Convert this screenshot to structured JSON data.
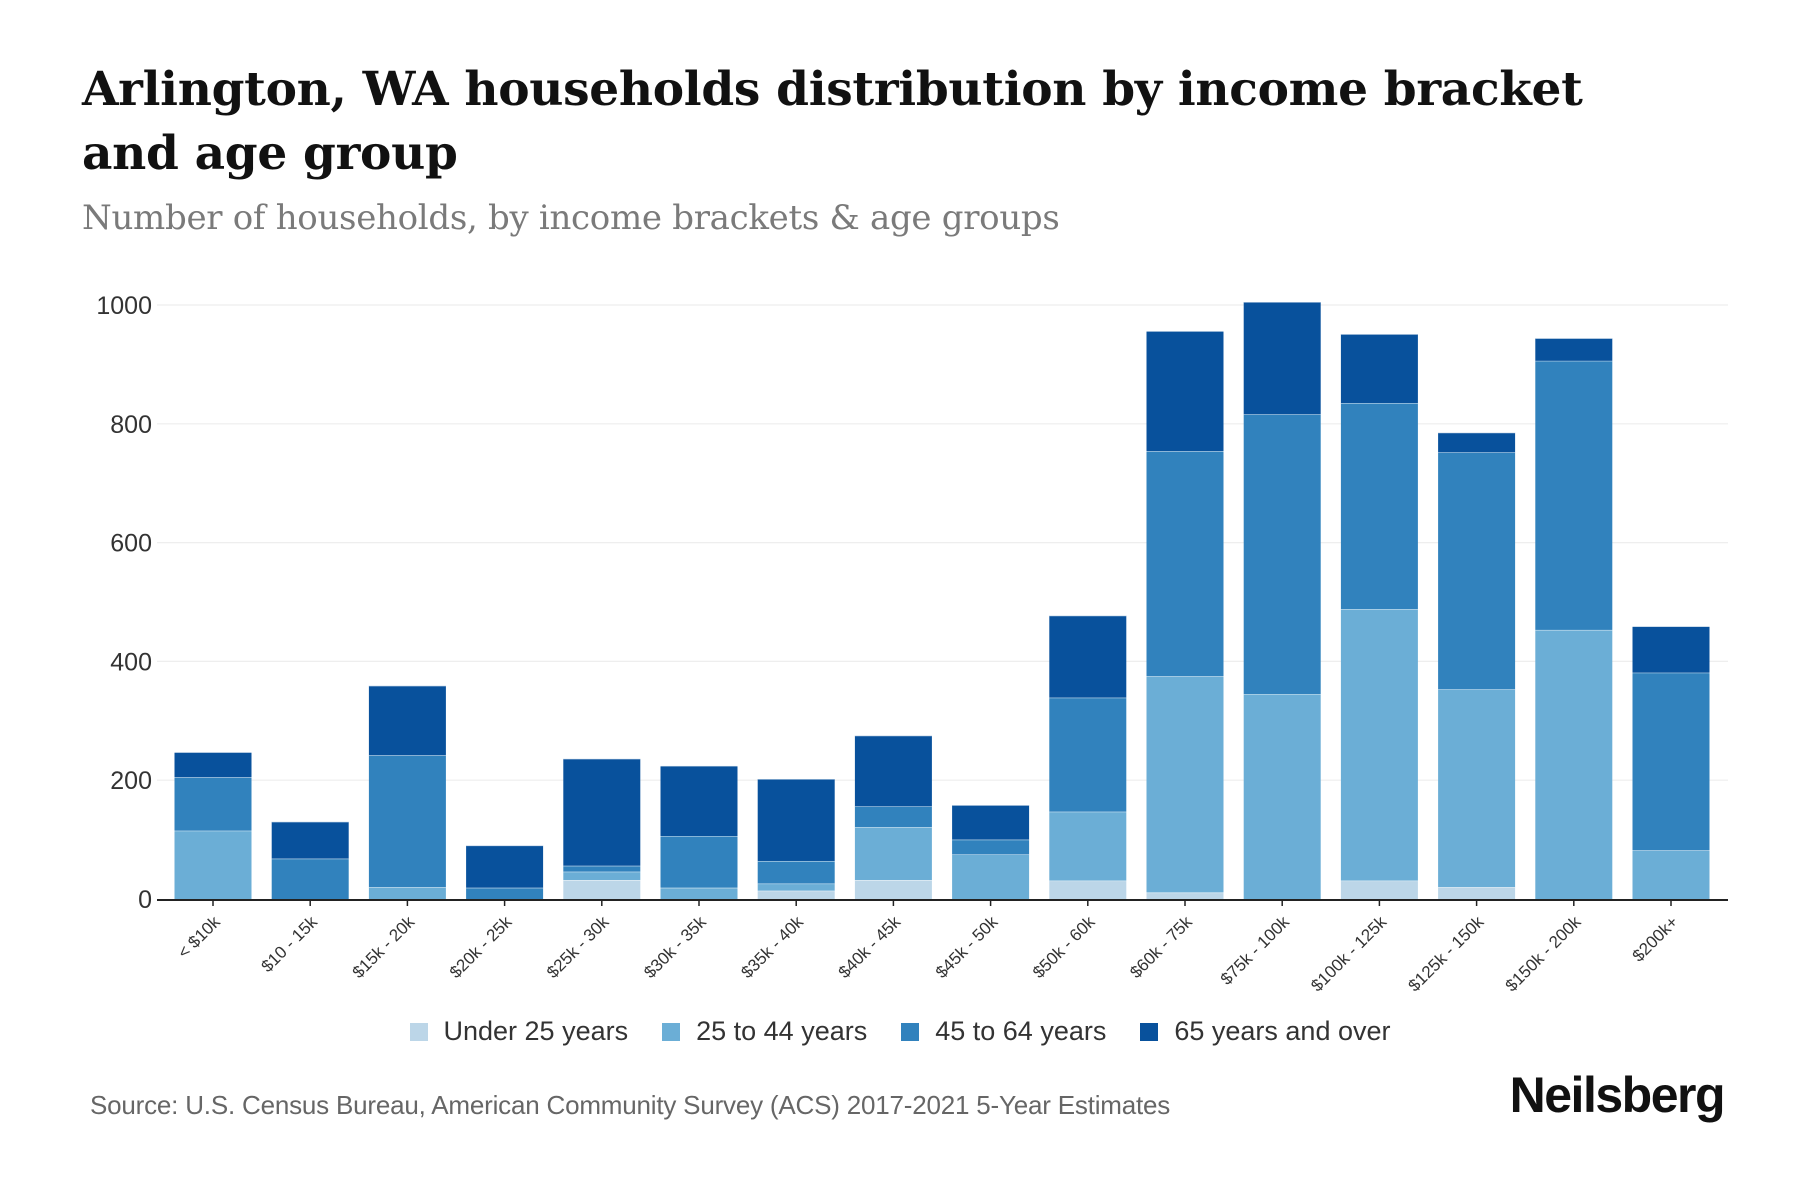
{
  "header": {
    "title": "Arlington, WA households distribution by income bracket and age group",
    "subtitle": "Number of households, by income brackets & age groups"
  },
  "footer": {
    "source": "Source: U.S. Census Bureau, American Community Survey (ACS) 2017-2021 5-Year Estimates",
    "brand": "Neilsberg"
  },
  "legend": [
    {
      "label": "Under 25 years",
      "color": "#bcd6e8"
    },
    {
      "label": "25 to 44 years",
      "color": "#6baed6"
    },
    {
      "label": "45 to 64 years",
      "color": "#3182bd"
    },
    {
      "label": "65 years and over",
      "color": "#08519c"
    }
  ],
  "chart_data": {
    "type": "bar",
    "stacked": true,
    "title": "Arlington, WA households distribution by income bracket and age group",
    "subtitle": "Number of households, by income brackets & age groups",
    "xlabel": "",
    "ylabel": "",
    "ylim": [
      0,
      1000
    ],
    "yticks": [
      0,
      200,
      400,
      600,
      800,
      1000
    ],
    "grid": true,
    "legend_position": "bottom",
    "categories": [
      "< $10k",
      "$10 - 15k",
      "$15k - 20k",
      "$20k - 25k",
      "$25k - 30k",
      "$30k - 35k",
      "$35k - 40k",
      "$40k - 45k",
      "$45k - 50k",
      "$50k - 60k",
      "$60k - 75k",
      "$75k - 100k",
      "$100k - 125k",
      "$125k - 150k",
      "$150k - 200k",
      "$200k+"
    ],
    "series": [
      {
        "name": "Under 25 years",
        "color": "#bcd6e8",
        "values": [
          0,
          0,
          0,
          0,
          32,
          0,
          14,
          32,
          0,
          31,
          11,
          0,
          31,
          20,
          0,
          0
        ]
      },
      {
        "name": "25 to 44 years",
        "color": "#6baed6",
        "values": [
          115,
          0,
          20,
          0,
          14,
          19,
          12,
          89,
          75,
          116,
          364,
          345,
          457,
          333,
          453,
          82
        ]
      },
      {
        "name": "45 to 64 years",
        "color": "#3182bd",
        "values": [
          90,
          68,
          222,
          19,
          10,
          87,
          38,
          35,
          25,
          192,
          379,
          471,
          347,
          399,
          453,
          299
        ]
      },
      {
        "name": "65 years and over",
        "color": "#08519c",
        "values": [
          42,
          62,
          117,
          71,
          180,
          118,
          138,
          119,
          58,
          138,
          202,
          189,
          116,
          33,
          38,
          78
        ]
      }
    ],
    "source": "Source: U.S. Census Bureau, American Community Survey (ACS) 2017-2021 5-Year Estimates"
  }
}
